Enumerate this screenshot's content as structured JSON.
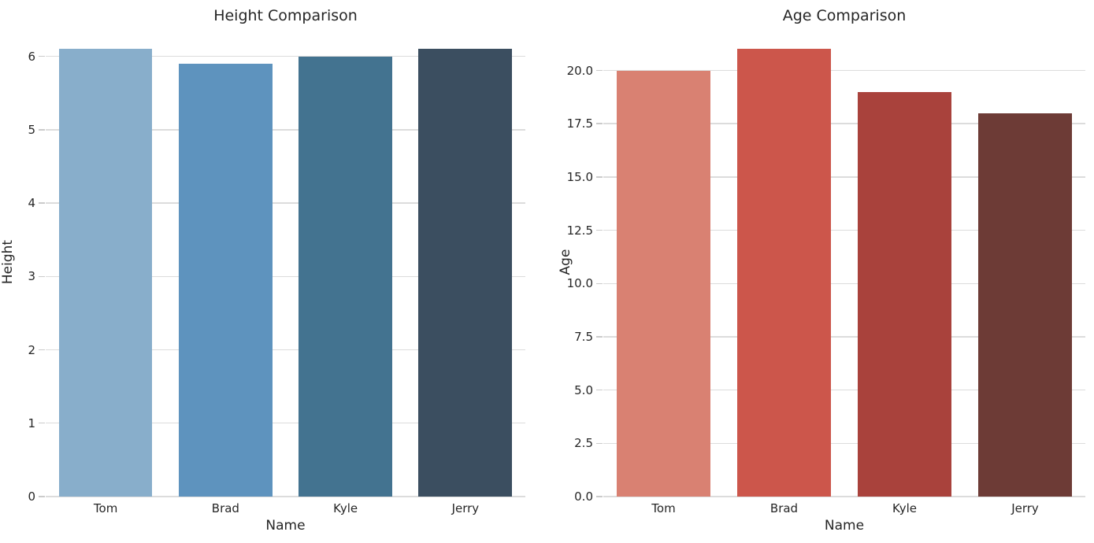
{
  "chart_data": [
    {
      "type": "bar",
      "title": "Height Comparison",
      "xlabel": "Name",
      "ylabel": "Height",
      "categories": [
        "Tom",
        "Brad",
        "Kyle",
        "Jerry"
      ],
      "values": [
        6.1,
        5.9,
        6.0,
        6.1
      ],
      "bar_colors": [
        "#88aecb",
        "#5e93be",
        "#437390",
        "#3b4e60"
      ],
      "yticks": [
        0,
        1,
        2,
        3,
        4,
        5,
        6
      ],
      "ytick_labels": [
        "0",
        "1",
        "2",
        "3",
        "4",
        "5",
        "6"
      ],
      "ylim": [
        0,
        6.405
      ],
      "grid": "horizontal",
      "legend": "none"
    },
    {
      "type": "bar",
      "title": "Age Comparison",
      "xlabel": "Name",
      "ylabel": "Age",
      "categories": [
        "Tom",
        "Brad",
        "Kyle",
        "Jerry"
      ],
      "values": [
        20,
        21,
        19,
        18
      ],
      "bar_colors": [
        "#d98172",
        "#cc564b",
        "#a9423c",
        "#6d3b36"
      ],
      "yticks": [
        0,
        2.5,
        5,
        7.5,
        10,
        12.5,
        15,
        17.5,
        20
      ],
      "ytick_labels": [
        "0.0",
        "2.5",
        "5.0",
        "7.5",
        "10.0",
        "12.5",
        "15.0",
        "17.5",
        "20.0"
      ],
      "ylim": [
        0,
        22.05
      ],
      "grid": "horizontal",
      "legend": "none"
    }
  ],
  "style_colors": {
    "background": "#ffffff",
    "grid": "#dcdcdc",
    "tick": "#cbcbcb",
    "text": "#262626"
  }
}
